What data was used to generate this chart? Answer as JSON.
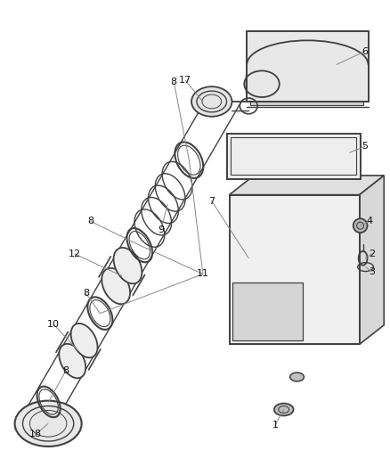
{
  "bg_color": "#ffffff",
  "part_color": "#404040",
  "label_color": "#111111",
  "pointer_color": "#888888",
  "fig_width": 4.38,
  "fig_height": 5.33,
  "dpi": 100
}
